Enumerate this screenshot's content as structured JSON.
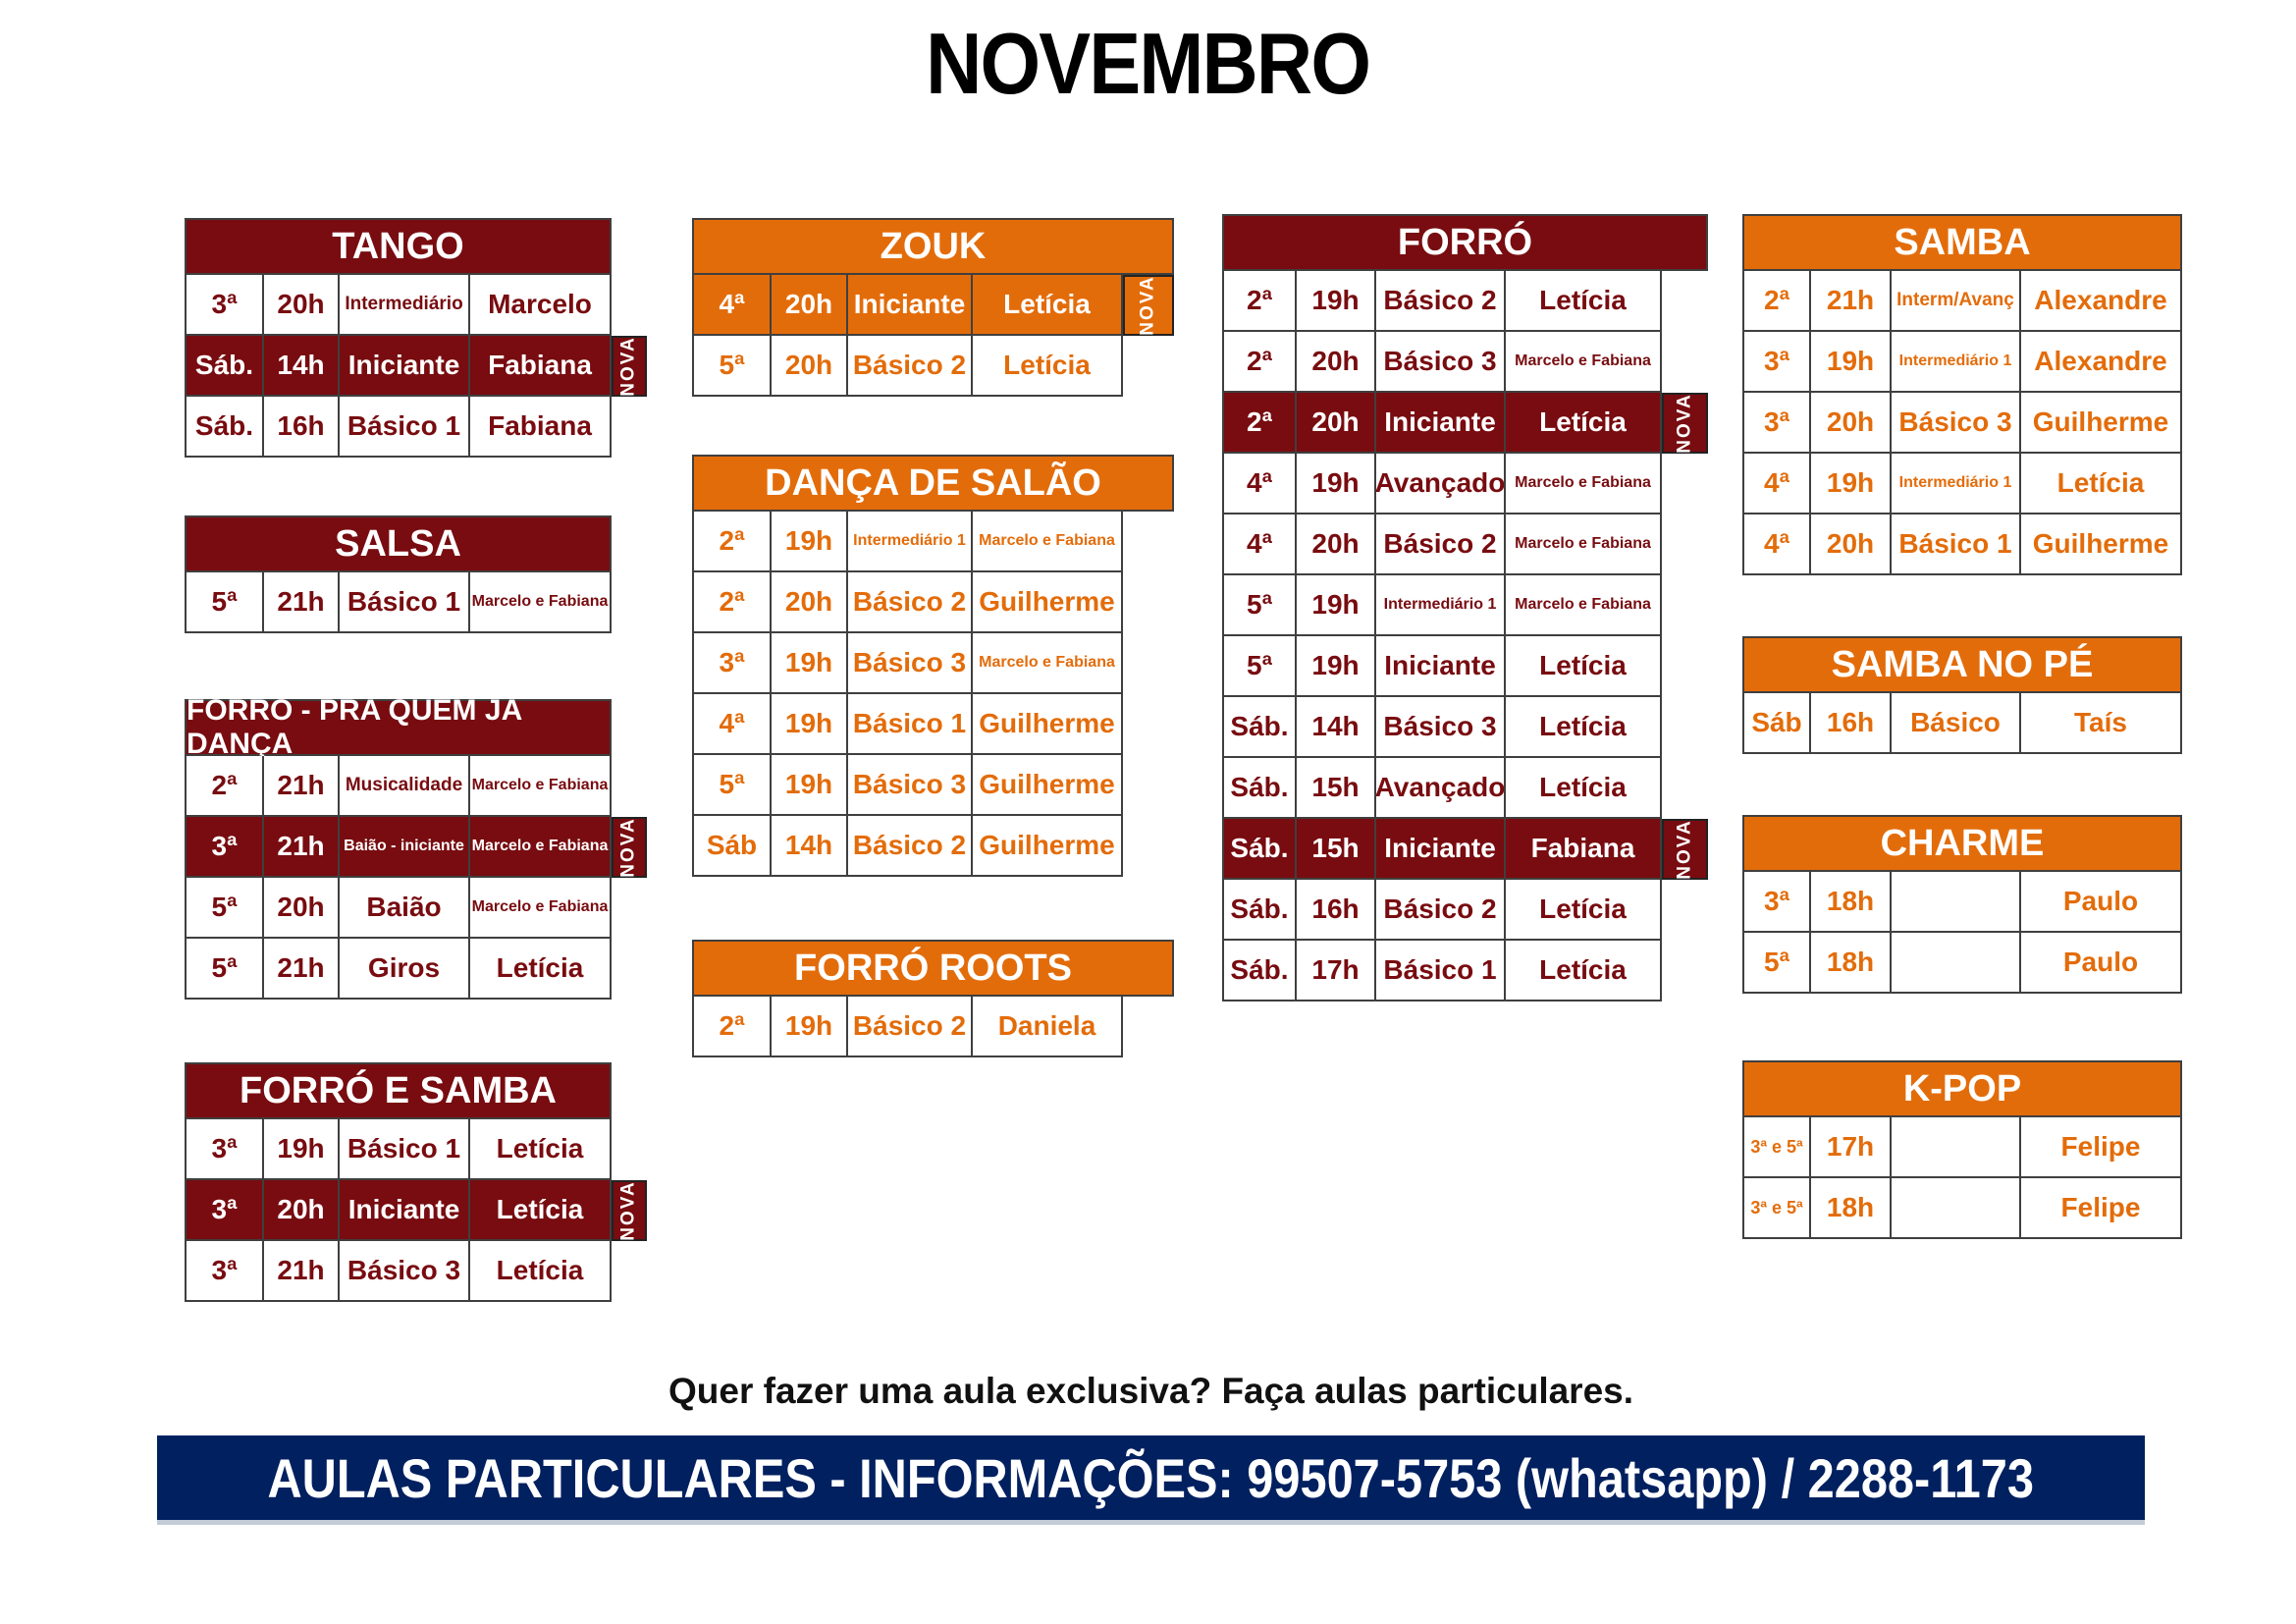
{
  "title": "NOVEMBRO",
  "nova_label": "NOVA",
  "colors": {
    "maroon": "#780C10",
    "orange": "#E36C0A",
    "navy": "#002060",
    "border": "#3F3F3F"
  },
  "tables": [
    {
      "id": "tango",
      "title": "TANGO",
      "theme": "maroon",
      "rows": [
        {
          "day": "3ª",
          "time": "20h",
          "level": "Intermediário",
          "teacher": "Marcelo",
          "nova": false
        },
        {
          "day": "Sáb.",
          "time": "14h",
          "level": "Iniciante",
          "teacher": "Fabiana",
          "nova": true
        },
        {
          "day": "Sáb.",
          "time": "16h",
          "level": "Básico 1",
          "teacher": "Fabiana",
          "nova": false
        }
      ]
    },
    {
      "id": "salsa",
      "title": "SALSA",
      "theme": "maroon",
      "rows": [
        {
          "day": "5ª",
          "time": "21h",
          "level": "Básico 1",
          "teacher": "Marcelo e Fabiana",
          "nova": false
        }
      ]
    },
    {
      "id": "forro-pra-quem",
      "title": "FORRÓ - PRA QUEM JÁ DANÇA",
      "theme": "maroon",
      "rows": [
        {
          "day": "2ª",
          "time": "21h",
          "level": "Musicalidade",
          "teacher": "Marcelo e Fabiana",
          "nova": false
        },
        {
          "day": "3ª",
          "time": "21h",
          "level": "Baião - iniciante",
          "teacher": "Marcelo e Fabiana",
          "nova": true
        },
        {
          "day": "5ª",
          "time": "20h",
          "level": "Baião",
          "teacher": "Marcelo e Fabiana",
          "nova": false
        },
        {
          "day": "5ª",
          "time": "21h",
          "level": "Giros",
          "teacher": "Letícia",
          "nova": false
        }
      ]
    },
    {
      "id": "forro-e-samba",
      "title": "FORRÓ E SAMBA",
      "theme": "maroon",
      "rows": [
        {
          "day": "3ª",
          "time": "19h",
          "level": "Básico 1",
          "teacher": "Letícia",
          "nova": false
        },
        {
          "day": "3ª",
          "time": "20h",
          "level": "Iniciante",
          "teacher": "Letícia",
          "nova": true
        },
        {
          "day": "3ª",
          "time": "21h",
          "level": "Básico 3",
          "teacher": "Letícia",
          "nova": false
        }
      ]
    },
    {
      "id": "zouk",
      "title": "ZOUK",
      "theme": "orange",
      "rows": [
        {
          "day": "4ª",
          "time": "20h",
          "level": "Iniciante",
          "teacher": "Letícia",
          "nova": true
        },
        {
          "day": "5ª",
          "time": "20h",
          "level": "Básico 2",
          "teacher": "Letícia",
          "nova": false
        }
      ]
    },
    {
      "id": "danca-de-salao",
      "title": "DANÇA DE SALÃO",
      "theme": "orange",
      "rows": [
        {
          "day": "2ª",
          "time": "19h",
          "level": "Intermediário 1",
          "teacher": "Marcelo e Fabiana",
          "nova": false
        },
        {
          "day": "2ª",
          "time": "20h",
          "level": "Básico 2",
          "teacher": "Guilherme",
          "nova": false
        },
        {
          "day": "3ª",
          "time": "19h",
          "level": "Básico 3",
          "teacher": "Marcelo e Fabiana",
          "nova": false
        },
        {
          "day": "4ª",
          "time": "19h",
          "level": "Básico 1",
          "teacher": "Guilherme",
          "nova": false
        },
        {
          "day": "5ª",
          "time": "19h",
          "level": "Básico 3",
          "teacher": "Guilherme",
          "nova": false
        },
        {
          "day": "Sáb",
          "time": "14h",
          "level": "Básico 2",
          "teacher": "Guilherme",
          "nova": false
        }
      ]
    },
    {
      "id": "forro-roots",
      "title": "FORRÓ ROOTS",
      "theme": "orange",
      "rows": [
        {
          "day": "2ª",
          "time": "19h",
          "level": "Básico 2",
          "teacher": "Daniela",
          "nova": false
        }
      ]
    },
    {
      "id": "forro",
      "title": "FORRÓ",
      "theme": "maroon",
      "rows": [
        {
          "day": "2ª",
          "time": "19h",
          "level": "Básico 2",
          "teacher": "Letícia",
          "nova": false
        },
        {
          "day": "2ª",
          "time": "20h",
          "level": "Básico 3",
          "teacher": "Marcelo e Fabiana",
          "nova": false
        },
        {
          "day": "2ª",
          "time": "20h",
          "level": "Iniciante",
          "teacher": "Letícia",
          "nova": true
        },
        {
          "day": "4ª",
          "time": "19h",
          "level": "Avançado",
          "teacher": "Marcelo e Fabiana",
          "nova": false
        },
        {
          "day": "4ª",
          "time": "20h",
          "level": "Básico 2",
          "teacher": "Marcelo e Fabiana",
          "nova": false
        },
        {
          "day": "5ª",
          "time": "19h",
          "level": "Intermediário 1",
          "teacher": "Marcelo e Fabiana",
          "nova": false
        },
        {
          "day": "5ª",
          "time": "19h",
          "level": "Iniciante",
          "teacher": "Letícia",
          "nova": false
        },
        {
          "day": "Sáb.",
          "time": "14h",
          "level": "Básico 3",
          "teacher": "Letícia",
          "nova": false
        },
        {
          "day": "Sáb.",
          "time": "15h",
          "level": "Avançado",
          "teacher": "Letícia",
          "nova": false
        },
        {
          "day": "Sáb.",
          "time": "15h",
          "level": "Iniciante",
          "teacher": "Fabiana",
          "nova": true
        },
        {
          "day": "Sáb.",
          "time": "16h",
          "level": "Básico 2",
          "teacher": "Letícia",
          "nova": false
        },
        {
          "day": "Sáb.",
          "time": "17h",
          "level": "Básico 1",
          "teacher": "Letícia",
          "nova": false
        }
      ]
    },
    {
      "id": "samba",
      "title": "SAMBA",
      "theme": "orange",
      "rows": [
        {
          "day": "2ª",
          "time": "21h",
          "level": "Interm/Avanç",
          "teacher": "Alexandre",
          "nova": false
        },
        {
          "day": "3ª",
          "time": "19h",
          "level": "Intermediário 1",
          "teacher": "Alexandre",
          "nova": false
        },
        {
          "day": "3ª",
          "time": "20h",
          "level": "Básico 3",
          "teacher": "Guilherme",
          "nova": false
        },
        {
          "day": "4ª",
          "time": "19h",
          "level": "Intermediário 1",
          "teacher": "Letícia",
          "nova": false
        },
        {
          "day": "4ª",
          "time": "20h",
          "level": "Básico 1",
          "teacher": "Guilherme",
          "nova": false
        }
      ]
    },
    {
      "id": "samba-no-pe",
      "title": "SAMBA NO PÉ",
      "theme": "orange",
      "rows": [
        {
          "day": "Sáb",
          "time": "16h",
          "level": "Básico",
          "teacher": "Taís",
          "nova": false
        }
      ]
    },
    {
      "id": "charme",
      "title": "CHARME",
      "theme": "orange",
      "rows": [
        {
          "day": "3ª",
          "time": "18h",
          "level": "",
          "teacher": "Paulo",
          "nova": false
        },
        {
          "day": "5ª",
          "time": "18h",
          "level": "",
          "teacher": "Paulo",
          "nova": false
        }
      ]
    },
    {
      "id": "k-pop",
      "title": "K-POP",
      "theme": "orange",
      "rows": [
        {
          "day": "3ª e 5ª",
          "time": "17h",
          "level": "",
          "teacher": "Felipe",
          "nova": false
        },
        {
          "day": "3ª e 5ª",
          "time": "18h",
          "level": "",
          "teacher": "Felipe",
          "nova": false
        }
      ]
    }
  ],
  "footer": {
    "note": "Quer fazer uma aula exclusiva?  Faça aulas particulares.",
    "banner": "AULAS PARTICULARES - INFORMAÇÕES: 99507-5753 (whatsapp) / 2288-1173"
  }
}
